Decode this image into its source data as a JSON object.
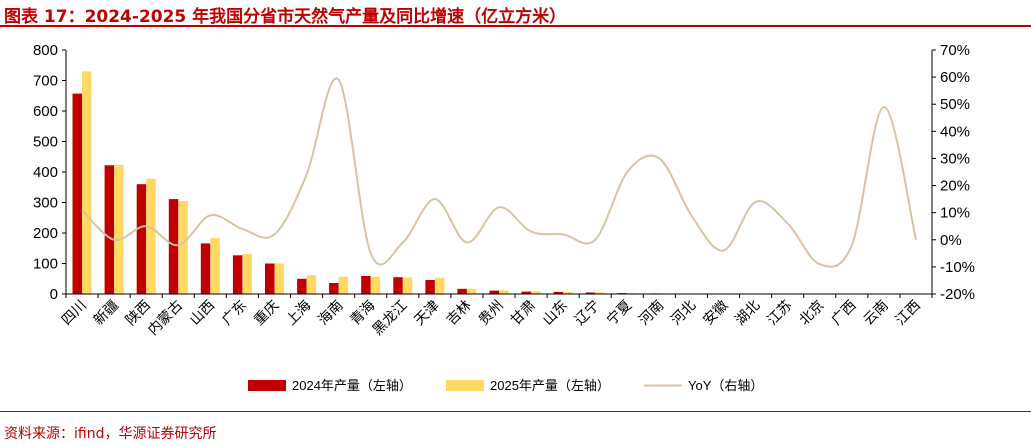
{
  "figure": {
    "title": "图表 17：2024-2025 年我国分省市天然气产量及同比增速（亿立方米）",
    "source": "资料来源：ifind，华源证券研究所"
  },
  "colors": {
    "accent": "#c00000",
    "series_2024": "#c00000",
    "series_2025": "#ffd966",
    "yoy_line": "#d9c3a5"
  },
  "chart_data": {
    "type": "bar",
    "categories": [
      "四川",
      "新疆",
      "陕西",
      "内蒙古",
      "山西",
      "广东",
      "重庆",
      "上海",
      "海南",
      "青海",
      "黑龙江",
      "天津",
      "吉林",
      "贵州",
      "甘肃",
      "山东",
      "辽宁",
      "宁夏",
      "河南",
      "河北",
      "安徽",
      "湖北",
      "江苏",
      "北京",
      "广西",
      "云南",
      "江西"
    ],
    "series": [
      {
        "name": "2024年产量（左轴）",
        "type": "bar",
        "axis": "left",
        "values": [
          657,
          422,
          360,
          311,
          166,
          127,
          100,
          50,
          36,
          59,
          55,
          46,
          17,
          11,
          8,
          7,
          5,
          3,
          2,
          1,
          0,
          0,
          0,
          0,
          0,
          0,
          0
        ]
      },
      {
        "name": "2025年产量（左轴）",
        "type": "bar",
        "axis": "left",
        "values": [
          730,
          423,
          378,
          305,
          183,
          131,
          100,
          62,
          57,
          57,
          54,
          53,
          17,
          12,
          9,
          7,
          6,
          3,
          2,
          1,
          0,
          0,
          0,
          0,
          0,
          0,
          0
        ]
      },
      {
        "name": "YoY（右轴）",
        "type": "line",
        "axis": "right",
        "values": [
          0.11,
          0.0,
          0.05,
          -0.02,
          0.09,
          0.04,
          0.02,
          0.24,
          0.59,
          -0.05,
          -0.01,
          0.15,
          -0.01,
          0.12,
          0.03,
          0.02,
          0.0,
          0.25,
          0.3,
          0.09,
          -0.04,
          0.14,
          0.06,
          -0.09,
          -0.02,
          0.49,
          0.0
        ]
      }
    ],
    "y_left": {
      "min": 0,
      "max": 800,
      "step": 100,
      "ticks": [
        "0",
        "100",
        "200",
        "300",
        "400",
        "500",
        "600",
        "700",
        "800"
      ]
    },
    "y_right": {
      "min": -0.2,
      "max": 0.7,
      "step": 0.1,
      "ticks": [
        "-20%",
        "-10%",
        "0%",
        "10%",
        "20%",
        "30%",
        "40%",
        "50%",
        "60%",
        "70%"
      ]
    },
    "grid": false,
    "legend": {
      "position": "bottom",
      "labels": [
        "2024年产量（左轴）",
        "2025年产量（左轴）",
        "YoY（右轴）"
      ]
    }
  }
}
